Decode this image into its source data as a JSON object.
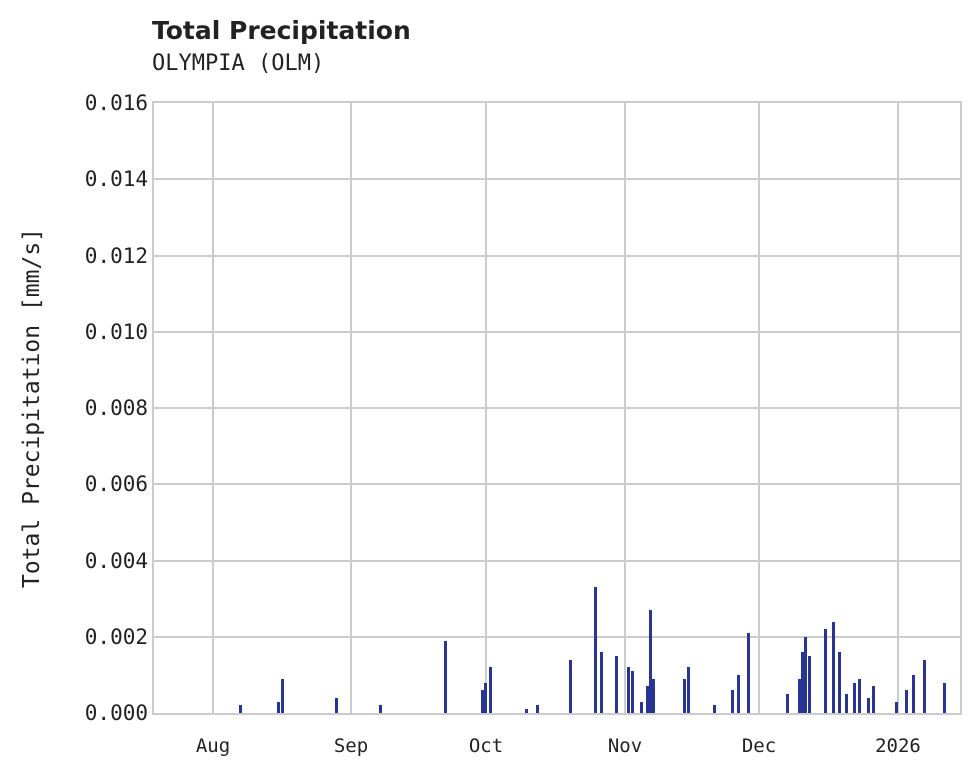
{
  "chart_data": {
    "type": "bar",
    "title": "Total Precipitation",
    "subtitle": "OLYMPIA (OLM)",
    "xlabel": "",
    "ylabel": "Total Precipitation [mm/s]",
    "ylim": [
      0,
      0.016
    ],
    "yticks": [
      "0.000",
      "0.002",
      "0.004",
      "0.006",
      "0.008",
      "0.010",
      "0.012",
      "0.014",
      "0.016"
    ],
    "xticks": [
      "Aug",
      "Sep",
      "Oct",
      "Nov",
      "Dec",
      "2026"
    ],
    "grid": true,
    "bar_color": "#283593",
    "series": [
      {
        "name": "Total Precipitation",
        "points": [
          {
            "x": 86,
            "y": 0.0002
          },
          {
            "x": 124,
            "y": 0.0003
          },
          {
            "x": 128,
            "y": 0.0009
          },
          {
            "x": 182,
            "y": 0.0004
          },
          {
            "x": 226,
            "y": 0.0002
          },
          {
            "x": 291,
            "y": 0.0019
          },
          {
            "x": 328,
            "y": 0.0006
          },
          {
            "x": 331,
            "y": 0.0008
          },
          {
            "x": 336,
            "y": 0.0012
          },
          {
            "x": 372,
            "y": 0.0001
          },
          {
            "x": 383,
            "y": 0.0002
          },
          {
            "x": 416,
            "y": 0.0014
          },
          {
            "x": 441,
            "y": 0.0033
          },
          {
            "x": 447,
            "y": 0.0016
          },
          {
            "x": 462,
            "y": 0.0015
          },
          {
            "x": 474,
            "y": 0.0012
          },
          {
            "x": 478,
            "y": 0.0011
          },
          {
            "x": 487,
            "y": 0.0003
          },
          {
            "x": 493,
            "y": 0.0007
          },
          {
            "x": 496,
            "y": 0.0027
          },
          {
            "x": 499,
            "y": 0.0009
          },
          {
            "x": 530,
            "y": 0.0009
          },
          {
            "x": 534,
            "y": 0.0012
          },
          {
            "x": 560,
            "y": 0.0002
          },
          {
            "x": 578,
            "y": 0.0006
          },
          {
            "x": 584,
            "y": 0.001
          },
          {
            "x": 594,
            "y": 0.0021
          },
          {
            "x": 633,
            "y": 0.0005
          },
          {
            "x": 645,
            "y": 0.0009
          },
          {
            "x": 648,
            "y": 0.0016
          },
          {
            "x": 651,
            "y": 0.002
          },
          {
            "x": 655,
            "y": 0.0015
          },
          {
            "x": 671,
            "y": 0.0022
          },
          {
            "x": 679,
            "y": 0.0024
          },
          {
            "x": 685,
            "y": 0.0016
          },
          {
            "x": 692,
            "y": 0.0005
          },
          {
            "x": 700,
            "y": 0.0008
          },
          {
            "x": 705,
            "y": 0.0009
          },
          {
            "x": 714,
            "y": 0.0004
          },
          {
            "x": 719,
            "y": 0.0007
          },
          {
            "x": 742,
            "y": 0.0003
          },
          {
            "x": 752,
            "y": 0.0006
          },
          {
            "x": 759,
            "y": 0.001
          },
          {
            "x": 770,
            "y": 0.0014
          },
          {
            "x": 790,
            "y": 0.0008
          }
        ]
      }
    ]
  }
}
